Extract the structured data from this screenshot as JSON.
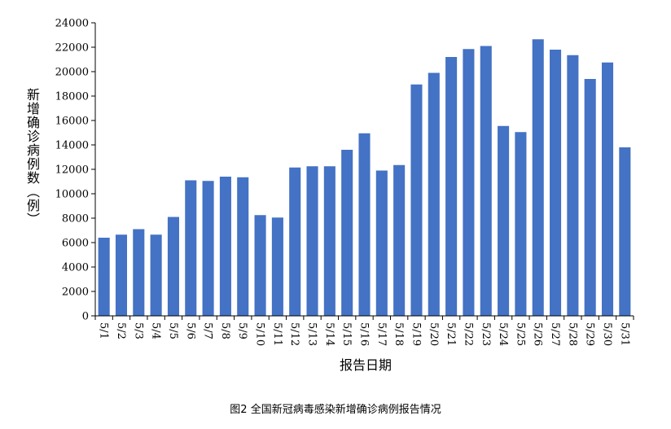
{
  "chart_data": {
    "type": "bar",
    "categories": [
      "5/1",
      "5/2",
      "5/3",
      "5/4",
      "5/5",
      "5/6",
      "5/7",
      "5/8",
      "5/9",
      "5/10",
      "5/11",
      "5/12",
      "5/13",
      "5/14",
      "5/15",
      "5/16",
      "5/17",
      "5/18",
      "5/19",
      "5/20",
      "5/21",
      "5/22",
      "5/23",
      "5/24",
      "5/25",
      "5/26",
      "5/27",
      "5/28",
      "5/29",
      "5/30",
      "5/31"
    ],
    "values": [
      6400,
      6650,
      7100,
      6650,
      8100,
      11100,
      11050,
      11400,
      11350,
      8250,
      8050,
      12150,
      12250,
      12250,
      13600,
      14950,
      11900,
      12350,
      18950,
      19900,
      21200,
      21850,
      22100,
      15550,
      15050,
      22650,
      21800,
      21350,
      19400,
      20750,
      13800
    ],
    "ylabel": "新增确诊病例数（例）",
    "xlabel": "报告日期",
    "ylim": [
      0,
      24000
    ],
    "yticks": [
      0,
      2000,
      4000,
      6000,
      8000,
      10000,
      12000,
      14000,
      16000,
      18000,
      20000,
      22000,
      24000
    ],
    "bar_color": "#4472C4",
    "grid": false,
    "legend": "none"
  },
  "caption": "图2 全国新冠病毒感染新增确诊病例报告情况"
}
